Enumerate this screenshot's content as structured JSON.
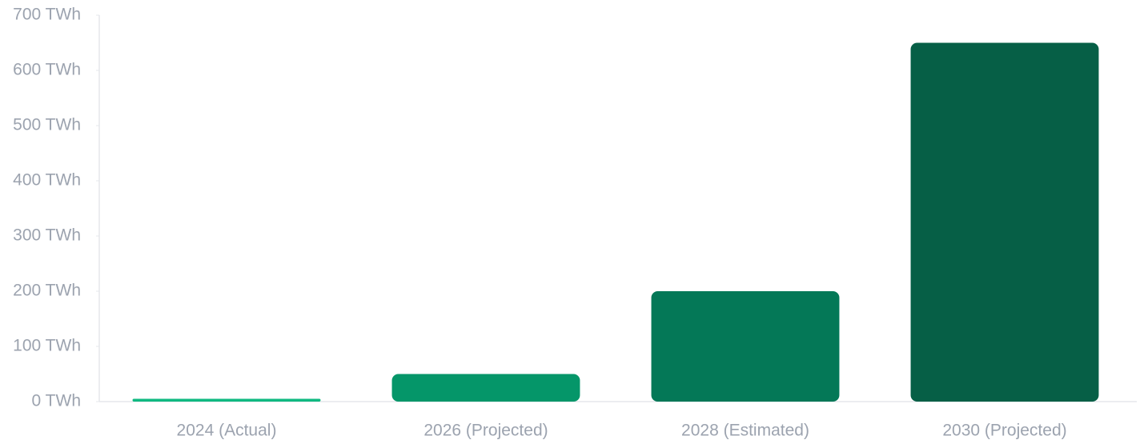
{
  "chart_data": {
    "type": "bar",
    "categories": [
      "2024 (Actual)",
      "2026 (Projected)",
      "2028 (Estimated)",
      "2030 (Projected)"
    ],
    "values": [
      5,
      50,
      200,
      650
    ],
    "colors": [
      "#10b981",
      "#059669",
      "#047857",
      "#065f46"
    ],
    "ylim": [
      0,
      700
    ],
    "yticks": [
      {
        "value": 0,
        "label": "0 TWh"
      },
      {
        "value": 100,
        "label": "100 TWh"
      },
      {
        "value": 200,
        "label": "200 TWh"
      },
      {
        "value": 300,
        "label": "300 TWh"
      },
      {
        "value": 400,
        "label": "400 TWh"
      },
      {
        "value": 500,
        "label": "500 TWh"
      },
      {
        "value": 600,
        "label": "600 TWh"
      },
      {
        "value": 700,
        "label": "700 TWh"
      }
    ],
    "grid": false
  }
}
